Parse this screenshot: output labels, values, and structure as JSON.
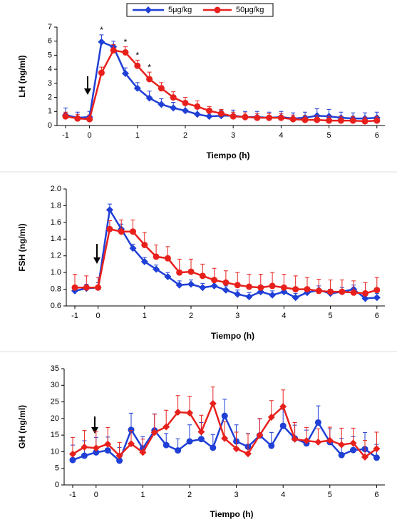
{
  "chart_data": [
    {
      "type": "line",
      "ylabel": "LH (ng/ml)",
      "xlabel": "Tiempo (h)",
      "categories": [
        "-1",
        null,
        "0",
        null,
        null,
        null,
        "1",
        null,
        null,
        null,
        "2",
        null,
        null,
        null,
        "3",
        null,
        null,
        null,
        "4",
        null,
        null,
        null,
        "5",
        null,
        null,
        null,
        "6"
      ],
      "ylim": [
        0,
        7
      ],
      "yticks": [
        0,
        1,
        2,
        3,
        4,
        5,
        6,
        7
      ],
      "annotations": [
        null,
        null,
        null,
        "*",
        null,
        "*",
        "*",
        "*",
        null,
        null,
        null,
        null,
        null,
        null,
        null,
        null,
        null,
        null,
        null,
        null,
        null,
        null,
        null,
        null,
        null,
        null,
        null
      ],
      "series": [
        {
          "name": "5μg/kg",
          "color": "#1f3fd6",
          "marker": "diamond",
          "values": [
            0.75,
            0.55,
            0.6,
            5.95,
            5.6,
            3.7,
            2.65,
            1.95,
            1.5,
            1.25,
            1.05,
            0.8,
            0.65,
            0.7,
            0.7,
            0.6,
            0.6,
            0.55,
            0.6,
            0.5,
            0.55,
            0.7,
            0.65,
            0.55,
            0.5,
            0.5,
            0.55
          ],
          "errors": [
            0.5,
            0.4,
            0.4,
            0.5,
            0.4,
            0.4,
            0.4,
            0.5,
            0.4,
            0.4,
            0.4,
            0.4,
            0.4,
            0.4,
            0.4,
            0.4,
            0.4,
            0.4,
            0.4,
            0.4,
            0.4,
            0.5,
            0.5,
            0.4,
            0.4,
            0.4,
            0.4
          ]
        },
        {
          "name": "50μg/kg",
          "color": "#e8201c",
          "marker": "circle",
          "values": [
            0.65,
            0.5,
            0.45,
            3.75,
            5.35,
            5.2,
            4.25,
            3.3,
            2.65,
            2.0,
            1.6,
            1.35,
            1.05,
            0.85,
            0.65,
            0.6,
            0.55,
            0.55,
            0.55,
            0.45,
            0.4,
            0.4,
            0.35,
            0.35,
            0.35,
            0.3,
            0.35
          ],
          "errors": [
            0.3,
            0.3,
            0.3,
            0.4,
            0.4,
            0.4,
            0.4,
            0.5,
            0.4,
            0.4,
            0.4,
            0.4,
            0.3,
            0.3,
            0.3,
            0.3,
            0.3,
            0.3,
            0.3,
            0.3,
            0.3,
            0.3,
            0.3,
            0.3,
            0.3,
            0.3,
            0.3
          ]
        }
      ]
    },
    {
      "type": "line",
      "ylabel": "FSH (ng/ml)",
      "xlabel": "Tiempo (h)",
      "categories": [
        "-1",
        null,
        "0",
        null,
        null,
        null,
        "1",
        null,
        null,
        null,
        "2",
        null,
        null,
        null,
        "3",
        null,
        null,
        null,
        "4",
        null,
        null,
        null,
        "5",
        null,
        null,
        null,
        "6"
      ],
      "ylim": [
        0.6,
        2.0
      ],
      "yticks": [
        0.6,
        0.8,
        {
          "value": 1.0,
          "label": "1.0"
        },
        1.2,
        1.4,
        1.6,
        1.8,
        {
          "value": 2.0,
          "label": "2.0"
        }
      ],
      "series": [
        {
          "color": "#1f3fd6",
          "marker": "diamond",
          "values": [
            0.78,
            0.81,
            0.82,
            1.75,
            1.52,
            1.29,
            1.13,
            1.04,
            0.95,
            0.85,
            0.86,
            0.82,
            0.84,
            0.79,
            0.74,
            0.71,
            0.77,
            0.73,
            0.77,
            0.7,
            0.76,
            0.79,
            0.75,
            0.77,
            0.8,
            0.69,
            0.7
          ],
          "errors": [
            0.05,
            0.05,
            0.06,
            0.07,
            0.06,
            0.05,
            0.05,
            0.05,
            0.05,
            0.05,
            0.05,
            0.05,
            0.05,
            0.05,
            0.05,
            0.05,
            0.05,
            0.05,
            0.05,
            0.05,
            0.05,
            0.05,
            0.05,
            0.05,
            0.05,
            0.05,
            0.05
          ]
        },
        {
          "color": "#e8201c",
          "marker": "circle",
          "values": [
            0.82,
            0.82,
            0.82,
            1.52,
            1.49,
            1.49,
            1.33,
            1.19,
            1.17,
            1.0,
            1.01,
            0.96,
            0.91,
            0.88,
            0.85,
            0.83,
            0.82,
            0.84,
            0.82,
            0.8,
            0.8,
            0.78,
            0.77,
            0.77,
            0.76,
            0.75,
            0.79
          ],
          "errors": [
            0.16,
            0.14,
            0.12,
            0.1,
            0.14,
            0.14,
            0.15,
            0.14,
            0.14,
            0.16,
            0.15,
            0.14,
            0.14,
            0.14,
            0.15,
            0.15,
            0.16,
            0.16,
            0.16,
            0.16,
            0.14,
            0.14,
            0.14,
            0.14,
            0.14,
            0.13,
            0.15
          ]
        }
      ]
    },
    {
      "type": "line",
      "ylabel": "GH (ng/ml)",
      "xlabel": "Tiempo (h)",
      "categories": [
        "-1",
        null,
        "0",
        null,
        null,
        null,
        "1",
        null,
        null,
        null,
        "2",
        null,
        null,
        null,
        "3",
        null,
        null,
        null,
        "4",
        null,
        null,
        null,
        "5",
        null,
        null,
        null,
        "6"
      ],
      "ylim": [
        0,
        35
      ],
      "yticks": [
        0,
        5,
        10,
        15,
        20,
        25,
        30,
        35
      ],
      "series": [
        {
          "color": "#1f3fd6",
          "marker": "circle",
          "values": [
            7.5,
            8.8,
            9.8,
            10.4,
            7.3,
            16.6,
            11.0,
            16.4,
            12.0,
            10.4,
            13.1,
            13.8,
            11.2,
            20.8,
            13.1,
            11.5,
            14.9,
            11.8,
            17.8,
            14.0,
            12.5,
            18.8,
            12.9,
            9.0,
            10.5,
            10.8,
            8.2
          ],
          "errors": [
            4.5,
            4.5,
            4.5,
            4.0,
            4.0,
            5.0,
            3.5,
            5.0,
            3.5,
            3.5,
            5.0,
            5.0,
            4.0,
            5.0,
            5.0,
            4.0,
            5.0,
            4.0,
            5.0,
            4.0,
            4.0,
            5.0,
            4.0,
            5.0,
            4.0,
            5.0,
            4.0
          ]
        },
        {
          "color": "#e8201c",
          "marker": "diamond",
          "values": [
            9.3,
            11.4,
            11.1,
            12.3,
            8.8,
            12.4,
            9.8,
            15.8,
            17.5,
            21.9,
            21.7,
            16.0,
            24.5,
            14.0,
            10.9,
            9.4,
            15.0,
            20.4,
            23.6,
            13.8,
            13.3,
            12.9,
            13.4,
            12.1,
            12.6,
            8.4,
            10.9
          ],
          "errors": [
            5.0,
            5.0,
            5.0,
            5.0,
            4.0,
            4.0,
            4.0,
            5.5,
            5.0,
            5.0,
            5.0,
            5.0,
            5.0,
            5.0,
            5.0,
            6.0,
            5.0,
            5.0,
            5.0,
            5.0,
            4.0,
            4.0,
            4.0,
            5.0,
            4.5,
            5.0,
            5.0
          ]
        }
      ]
    }
  ]
}
